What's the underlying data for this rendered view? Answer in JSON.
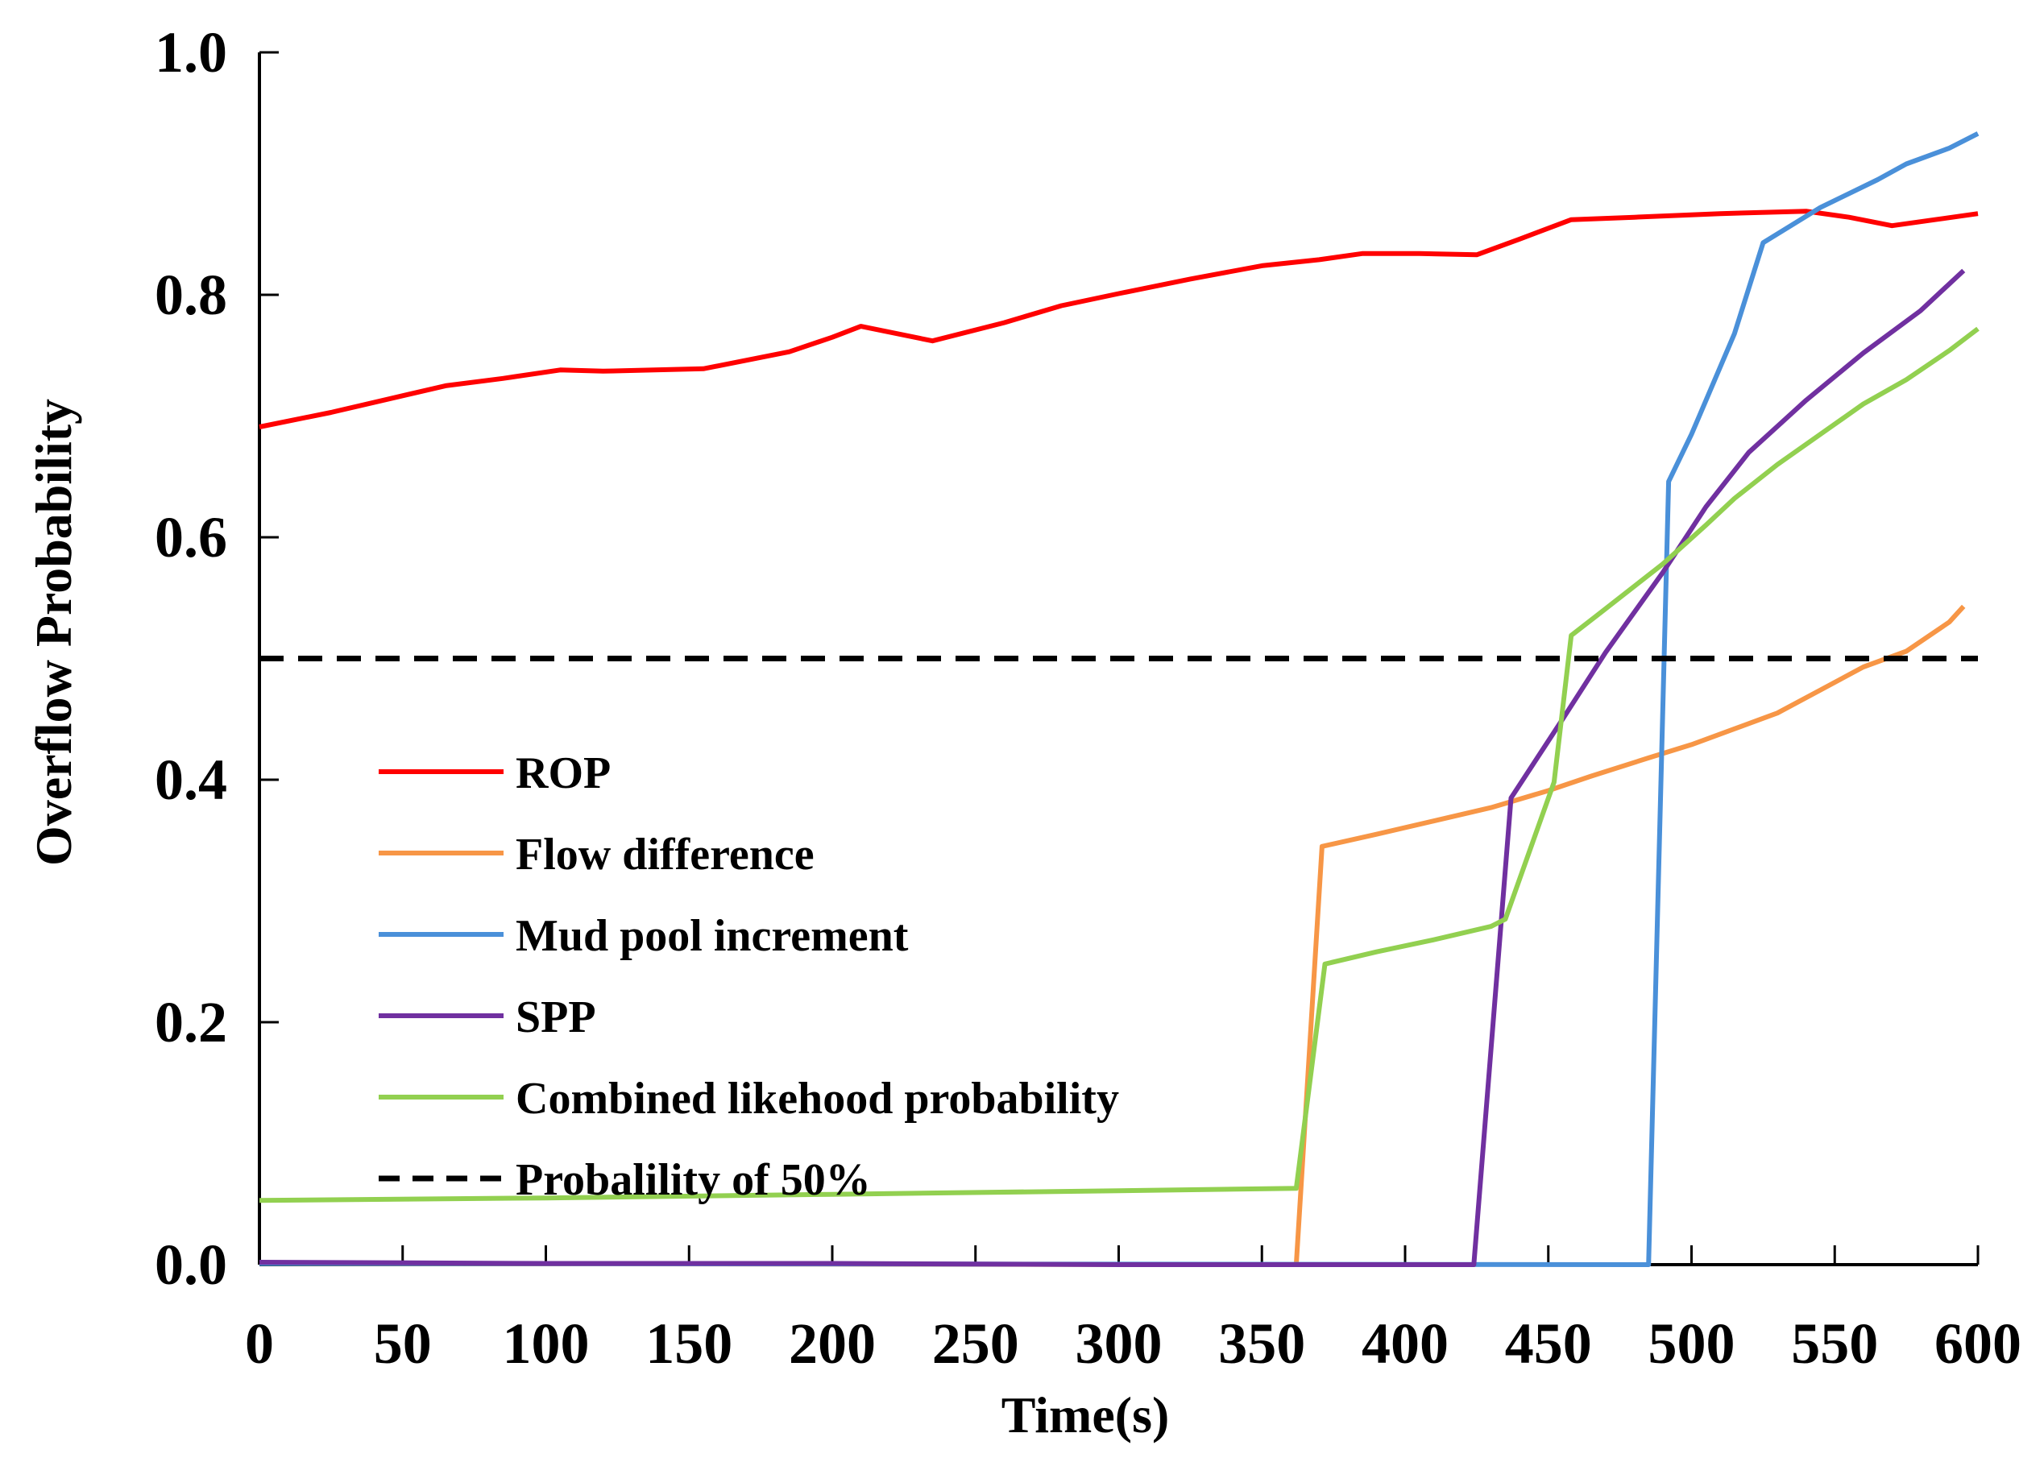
{
  "chart_data": {
    "type": "line",
    "title": "",
    "xlabel": "Time(s)",
    "ylabel": "Overflow Probability",
    "xlim": [
      0,
      600
    ],
    "ylim": [
      0,
      1.0
    ],
    "xticks": [
      "0",
      "50",
      "100",
      "150",
      "200",
      "250",
      "300",
      "350",
      "400",
      "450",
      "500",
      "550",
      "600"
    ],
    "yticks": [
      "0.0",
      "0.2",
      "0.4",
      "0.6",
      "0.8",
      "1.0"
    ],
    "grid": false,
    "legend_position": "bottom-left",
    "series": [
      {
        "name": "ROP",
        "color": "#ff0000",
        "dash": "solid",
        "points": [
          [
            0,
            0.691
          ],
          [
            25,
            0.703
          ],
          [
            45,
            0.714
          ],
          [
            65,
            0.725
          ],
          [
            85,
            0.731
          ],
          [
            105,
            0.738
          ],
          [
            120,
            0.737
          ],
          [
            155,
            0.739
          ],
          [
            185,
            0.753
          ],
          [
            200,
            0.765
          ],
          [
            210,
            0.774
          ],
          [
            235,
            0.762
          ],
          [
            260,
            0.777
          ],
          [
            280,
            0.791
          ],
          [
            300,
            0.801
          ],
          [
            325,
            0.813
          ],
          [
            350,
            0.824
          ],
          [
            370,
            0.829
          ],
          [
            385,
            0.834
          ],
          [
            405,
            0.834
          ],
          [
            425,
            0.833
          ],
          [
            440,
            0.846
          ],
          [
            458,
            0.862
          ],
          [
            480,
            0.864
          ],
          [
            510,
            0.867
          ],
          [
            540,
            0.869
          ],
          [
            555,
            0.864
          ],
          [
            570,
            0.857
          ],
          [
            585,
            0.862
          ],
          [
            600,
            0.867
          ]
        ]
      },
      {
        "name": "Flow difference",
        "color": "#f79646",
        "dash": "solid",
        "points": [
          [
            0,
            0.001
          ],
          [
            362,
            0.0
          ],
          [
            371,
            0.345
          ],
          [
            390,
            0.355
          ],
          [
            410,
            0.366
          ],
          [
            430,
            0.377
          ],
          [
            450,
            0.391
          ],
          [
            465,
            0.403
          ],
          [
            485,
            0.418
          ],
          [
            500,
            0.429
          ],
          [
            515,
            0.442
          ],
          [
            530,
            0.455
          ],
          [
            545,
            0.474
          ],
          [
            560,
            0.493
          ],
          [
            575,
            0.506
          ],
          [
            590,
            0.53
          ],
          [
            595,
            0.543
          ]
        ]
      },
      {
        "name": "Mud pool increment",
        "color": "#4a90d9",
        "dash": "solid",
        "points": [
          [
            0,
            0.001
          ],
          [
            485,
            0.0
          ],
          [
            492,
            0.646
          ],
          [
            500,
            0.685
          ],
          [
            515,
            0.768
          ],
          [
            525,
            0.843
          ],
          [
            545,
            0.872
          ],
          [
            565,
            0.895
          ],
          [
            575,
            0.908
          ],
          [
            590,
            0.921
          ],
          [
            600,
            0.933
          ]
        ]
      },
      {
        "name": "SPP",
        "color": "#7030a0",
        "dash": "solid",
        "points": [
          [
            0,
            0.002
          ],
          [
            100,
            0.001
          ],
          [
            200,
            0.001
          ],
          [
            300,
            0.0
          ],
          [
            424,
            0.0
          ],
          [
            437,
            0.385
          ],
          [
            455,
            0.45
          ],
          [
            470,
            0.505
          ],
          [
            490,
            0.571
          ],
          [
            505,
            0.625
          ],
          [
            520,
            0.67
          ],
          [
            540,
            0.713
          ],
          [
            560,
            0.752
          ],
          [
            580,
            0.787
          ],
          [
            595,
            0.82
          ]
        ]
      },
      {
        "name": "Combined likehood probability",
        "color": "#92d050",
        "dash": "solid",
        "points": [
          [
            0,
            0.053
          ],
          [
            100,
            0.055
          ],
          [
            200,
            0.058
          ],
          [
            300,
            0.061
          ],
          [
            362,
            0.063
          ],
          [
            372,
            0.248
          ],
          [
            390,
            0.258
          ],
          [
            410,
            0.268
          ],
          [
            430,
            0.279
          ],
          [
            435,
            0.285
          ],
          [
            452,
            0.398
          ],
          [
            458,
            0.519
          ],
          [
            470,
            0.541
          ],
          [
            490,
            0.578
          ],
          [
            505,
            0.61
          ],
          [
            515,
            0.632
          ],
          [
            530,
            0.66
          ],
          [
            545,
            0.685
          ],
          [
            560,
            0.71
          ],
          [
            575,
            0.73
          ],
          [
            590,
            0.754
          ],
          [
            600,
            0.772
          ]
        ]
      },
      {
        "name": "Probalility of 50%",
        "color": "#000000",
        "dash": "dashed",
        "points": [
          [
            0,
            0.5
          ],
          [
            600,
            0.5
          ]
        ]
      }
    ]
  }
}
